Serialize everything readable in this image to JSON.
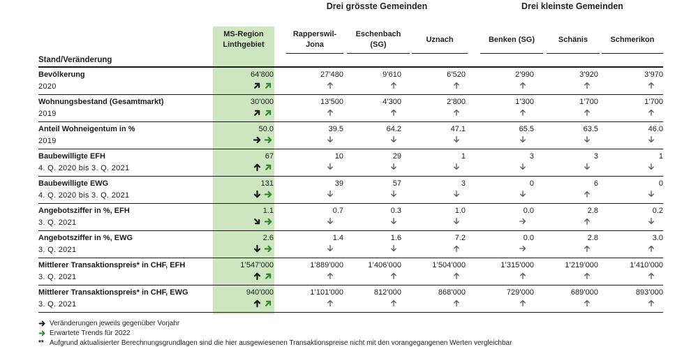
{
  "groups": {
    "large": "Drei grösste Gemeinden",
    "small": "Drei kleinste Gemeinden"
  },
  "stub_header": "Stand/Veränderung",
  "columns": [
    {
      "key": "region",
      "label_lines": [
        "MS-Region",
        "Linthgebiet"
      ]
    },
    {
      "key": "rapperswil",
      "label_lines": [
        "Rapperswil-",
        "Jona"
      ]
    },
    {
      "key": "eschenbach",
      "label_lines": [
        "Eschenbach",
        "(SG)"
      ]
    },
    {
      "key": "uznach",
      "label_lines": [
        "Uznach"
      ]
    },
    {
      "key": "benken",
      "label_lines": [
        "Benken (SG)"
      ]
    },
    {
      "key": "schaenis",
      "label_lines": [
        "Schänis"
      ]
    },
    {
      "key": "schmerikon",
      "label_lines": [
        "Schmerikon"
      ]
    }
  ],
  "colors": {
    "region_bg": "#cde6c0",
    "trend_green": "#2e8b2e",
    "arrow_dark": "#1a1a1a",
    "arrow_grey": "#5a5a5a"
  },
  "rows": [
    {
      "label": "Bevölkerung",
      "sub": "2020",
      "region": {
        "value": "64’800",
        "change": "up-right",
        "trend": "up-right"
      },
      "values": [
        "27’480",
        "9’610",
        "6’520",
        "2’990",
        "3’920",
        "3’970"
      ],
      "arrows": [
        "up",
        "up",
        "up",
        "up",
        "up",
        "up"
      ]
    },
    {
      "label": "Wohnungsbestand (Gesamtmarkt)",
      "sub": "2019",
      "region": {
        "value": "30’000",
        "change": "up-right",
        "trend": "up-right"
      },
      "values": [
        "13’500",
        "4’300",
        "2’800",
        "1’300",
        "1’700",
        "1’700"
      ],
      "arrows": [
        "up",
        "up",
        "up",
        "up",
        "up",
        "up"
      ]
    },
    {
      "label": "Anteil Wohneigentum in %",
      "sub": "2019",
      "region": {
        "value": "50.0",
        "change": "right",
        "trend": "right"
      },
      "values": [
        "39.5",
        "64.2",
        "47.1",
        "65.5",
        "63.5",
        "46.0"
      ],
      "arrows": [
        "down",
        "down",
        "down",
        "down",
        "down",
        "down"
      ]
    },
    {
      "label": "Baubewilligte EFH",
      "sub": "4. Q. 2020 bis 3. Q. 2021",
      "region": {
        "value": "67",
        "change": "up",
        "trend": "up-right"
      },
      "values": [
        "10",
        "29",
        "1",
        "3",
        "3",
        "1"
      ],
      "arrows": [
        "down",
        "down",
        "down",
        "down",
        "down",
        "down"
      ]
    },
    {
      "label": "Baubewilligte EWG",
      "sub": "4. Q. 2020 bis 3. Q. 2021",
      "region": {
        "value": "131",
        "change": "down",
        "trend": "right"
      },
      "values": [
        "39",
        "57",
        "3",
        "0",
        "6",
        "0"
      ],
      "arrows": [
        "down",
        "down",
        "down",
        "down",
        "up",
        "down"
      ]
    },
    {
      "label": "Angebotsziffer in %, EFH",
      "sub": "3. Q. 2021",
      "region": {
        "value": "1.1",
        "change": "down-right",
        "trend": "right"
      },
      "values": [
        "0.7",
        "0.3",
        "1.0",
        "0.0",
        "2.8",
        "0.2"
      ],
      "arrows": [
        "down",
        "down",
        "down",
        "right",
        "up",
        "down"
      ]
    },
    {
      "label": "Angebotsziffer in %, EWG",
      "sub": "3. Q. 2021",
      "region": {
        "value": "2.6",
        "change": "down",
        "trend": "right"
      },
      "values": [
        "1.4",
        "1.6",
        "7.2",
        "0.0",
        "2.8",
        "3.0"
      ],
      "arrows": [
        "down",
        "down",
        "up",
        "right",
        "up",
        "up"
      ]
    },
    {
      "label": "Mittlerer Transaktionspreis* in CHF, EFH",
      "sub": "3. Q. 2021",
      "region": {
        "value": "1’547’000",
        "change": "up",
        "trend": "up-right"
      },
      "values": [
        "1’889’000",
        "1’406’000",
        "1’504’000",
        "1’315’000",
        "1’219’000",
        "1’410’000"
      ],
      "arrows": [
        "up",
        "up",
        "up",
        "up",
        "up",
        "up"
      ]
    },
    {
      "label": "Mittlerer Transaktionspreis* in CHF, EWG",
      "sub": "3. Q. 2021",
      "region": {
        "value": "940’000",
        "change": "up",
        "trend": "up-right"
      },
      "values": [
        "1’101’000",
        "812’000",
        "868’000",
        "729’000",
        "689’000",
        "893’000"
      ],
      "arrows": [
        "up",
        "up",
        "up",
        "up",
        "up",
        "up"
      ]
    }
  ],
  "legend": {
    "change_note": "Veränderungen jeweils gegenüber Vorjahr",
    "trend_note": "Erwartete Trends für 2022",
    "star_symbol": "**",
    "star_note": "Aufgrund aktualisierter Berechnungsgrundlagen sind die hier ausgewiesenen Transaktionspreise nicht mit den vorangegangenen Werten vergleichbar"
  }
}
